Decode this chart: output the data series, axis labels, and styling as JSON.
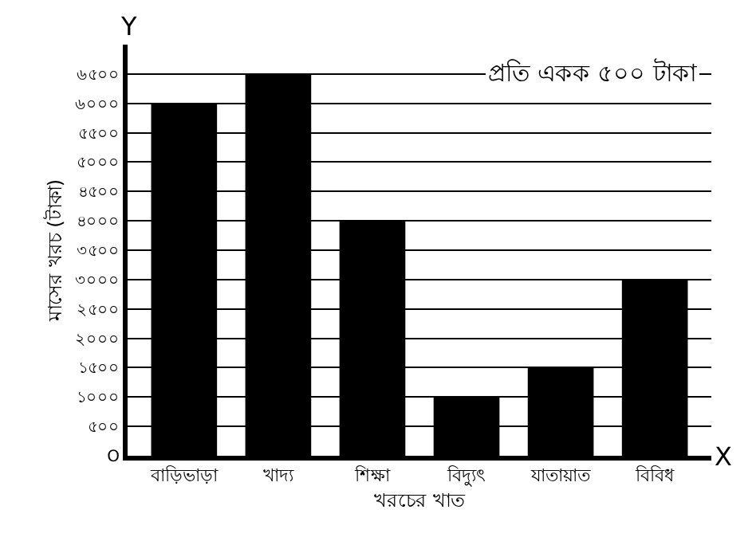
{
  "chart_data": {
    "type": "bar",
    "xlabel": "খরচের খাত",
    "ylabel": "মাসের খরচ (টাকা)",
    "categories": [
      "বাড়িভাড়া",
      "খাদ্য",
      "শিক্ষা",
      "বিদ্যুৎ",
      "যাতায়াত",
      "বিবিধ"
    ],
    "values": [
      6000,
      6500,
      4000,
      1000,
      1500,
      3000
    ],
    "color": "#000000",
    "ylim": [
      0,
      7000
    ],
    "yticks": [
      {
        "value": 0,
        "label": "O"
      },
      {
        "value": 500,
        "label": "৫০০"
      },
      {
        "value": 1000,
        "label": "১০০০"
      },
      {
        "value": 1500,
        "label": "১৫০০"
      },
      {
        "value": 2000,
        "label": "২০০০"
      },
      {
        "value": 2500,
        "label": "২৫০০"
      },
      {
        "value": 3000,
        "label": "৩০০০"
      },
      {
        "value": 3500,
        "label": "৩৫০০"
      },
      {
        "value": 4000,
        "label": "৪০০০"
      },
      {
        "value": 4500,
        "label": "৪৫০০"
      },
      {
        "value": 5000,
        "label": "৫০০০"
      },
      {
        "value": 5500,
        "label": "৫৫০০"
      },
      {
        "value": 6000,
        "label": "৬০০০"
      },
      {
        "value": 6500,
        "label": "৬৫০০"
      }
    ],
    "annotations": [
      "প্রতি একক ৫০০ টাকা",
      "X",
      "Y"
    ],
    "grid": "y"
  }
}
